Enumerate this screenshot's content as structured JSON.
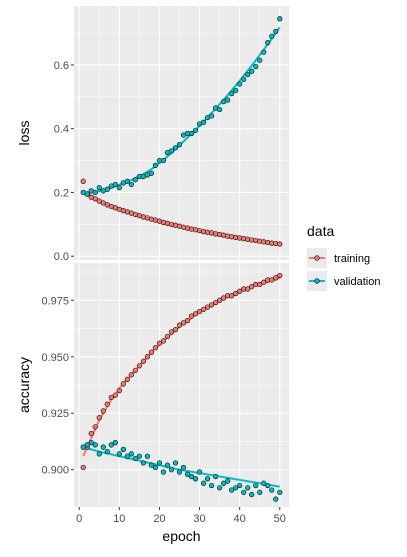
{
  "chart_data": {
    "type": "line",
    "facets": [
      {
        "name": "loss",
        "ylabel": "loss",
        "ylim": [
          -0.012,
          0.785
        ],
        "yticks": [
          0.0,
          0.2,
          0.4,
          0.6
        ],
        "tick_labels": [
          "0.0",
          "0.2",
          "0.4",
          "0.6"
        ],
        "series": [
          {
            "name": "training",
            "x": [
              1,
              2,
              3,
              4,
              5,
              6,
              7,
              8,
              9,
              10,
              11,
              12,
              13,
              14,
              15,
              16,
              17,
              18,
              19,
              20,
              21,
              22,
              23,
              24,
              25,
              26,
              27,
              28,
              29,
              30,
              31,
              32,
              33,
              34,
              35,
              36,
              37,
              38,
              39,
              40,
              41,
              42,
              43,
              44,
              45,
              46,
              47,
              48,
              49,
              50
            ],
            "y": [
              0.235,
              0.195,
              0.185,
              0.18,
              0.173,
              0.167,
              0.161,
              0.156,
              0.152,
              0.147,
              0.143,
              0.139,
              0.135,
              0.131,
              0.127,
              0.123,
              0.12,
              0.116,
              0.113,
              0.11,
              0.106,
              0.103,
              0.1,
              0.097,
              0.094,
              0.091,
              0.088,
              0.085,
              0.083,
              0.08,
              0.077,
              0.075,
              0.073,
              0.07,
              0.068,
              0.066,
              0.063,
              0.061,
              0.059,
              0.057,
              0.055,
              0.053,
              0.051,
              0.049,
              0.047,
              0.045,
              0.043,
              0.041,
              0.04,
              0.038
            ]
          },
          {
            "name": "validation",
            "x": [
              1,
              2,
              3,
              4,
              5,
              6,
              7,
              8,
              9,
              10,
              11,
              12,
              13,
              14,
              15,
              16,
              17,
              18,
              19,
              20,
              21,
              22,
              23,
              24,
              25,
              26,
              27,
              28,
              29,
              30,
              31,
              32,
              33,
              34,
              35,
              36,
              37,
              38,
              39,
              40,
              41,
              42,
              43,
              44,
              45,
              46,
              47,
              48,
              49,
              50
            ],
            "y": [
              0.2,
              0.195,
              0.205,
              0.2,
              0.215,
              0.205,
              0.21,
              0.22,
              0.225,
              0.215,
              0.23,
              0.235,
              0.225,
              0.24,
              0.25,
              0.25,
              0.255,
              0.26,
              0.285,
              0.3,
              0.3,
              0.325,
              0.33,
              0.34,
              0.35,
              0.38,
              0.385,
              0.385,
              0.395,
              0.415,
              0.42,
              0.435,
              0.44,
              0.465,
              0.46,
              0.485,
              0.49,
              0.51,
              0.52,
              0.54,
              0.555,
              0.57,
              0.58,
              0.595,
              0.615,
              0.64,
              0.67,
              0.69,
              0.705,
              0.745
            ]
          }
        ],
        "smooth": {
          "training": [
            0.205,
            0.196,
            0.188,
            0.181,
            0.174,
            0.168,
            0.162,
            0.157,
            0.152,
            0.147,
            0.143,
            0.139,
            0.135,
            0.131,
            0.127,
            0.123,
            0.12,
            0.116,
            0.113,
            0.11,
            0.106,
            0.103,
            0.1,
            0.097,
            0.094,
            0.091,
            0.088,
            0.086,
            0.083,
            0.08,
            0.078,
            0.075,
            0.073,
            0.07,
            0.068,
            0.066,
            0.063,
            0.061,
            0.059,
            0.057,
            0.055,
            0.053,
            0.051,
            0.049,
            0.047,
            0.045,
            0.043,
            0.041,
            0.039,
            0.037
          ],
          "validation": [
            0.198,
            0.199,
            0.2,
            0.202,
            0.204,
            0.207,
            0.211,
            0.215,
            0.219,
            0.224,
            0.229,
            0.234,
            0.239,
            0.245,
            0.251,
            0.258,
            0.265,
            0.273,
            0.282,
            0.292,
            0.302,
            0.313,
            0.324,
            0.336,
            0.348,
            0.36,
            0.372,
            0.384,
            0.396,
            0.409,
            0.422,
            0.435,
            0.449,
            0.463,
            0.477,
            0.491,
            0.505,
            0.52,
            0.535,
            0.55,
            0.566,
            0.582,
            0.598,
            0.614,
            0.631,
            0.648,
            0.665,
            0.682,
            0.7,
            0.718
          ]
        }
      },
      {
        "name": "accuracy",
        "ylabel": "accuracy",
        "ylim": [
          0.8835,
          0.9915
        ],
        "yticks": [
          0.9,
          0.925,
          0.95,
          0.975
        ],
        "tick_labels": [
          "0.900",
          "0.925",
          "0.950",
          "0.975"
        ],
        "series": [
          {
            "name": "training",
            "x": [
              1,
              2,
              3,
              4,
              5,
              6,
              7,
              8,
              9,
              10,
              11,
              12,
              13,
              14,
              15,
              16,
              17,
              18,
              19,
              20,
              21,
              22,
              23,
              24,
              25,
              26,
              27,
              28,
              29,
              30,
              31,
              32,
              33,
              34,
              35,
              36,
              37,
              38,
              39,
              40,
              41,
              42,
              43,
              44,
              45,
              46,
              47,
              48,
              49,
              50
            ],
            "y": [
              0.901,
              0.91,
              0.916,
              0.919,
              0.923,
              0.926,
              0.929,
              0.932,
              0.933,
              0.935,
              0.938,
              0.94,
              0.942,
              0.944,
              0.946,
              0.948,
              0.95,
              0.952,
              0.954,
              0.956,
              0.957,
              0.959,
              0.961,
              0.962,
              0.964,
              0.965,
              0.966,
              0.968,
              0.969,
              0.97,
              0.971,
              0.972,
              0.973,
              0.974,
              0.975,
              0.976,
              0.977,
              0.977,
              0.978,
              0.979,
              0.98,
              0.98,
              0.981,
              0.982,
              0.982,
              0.983,
              0.984,
              0.984,
              0.985,
              0.986
            ]
          },
          {
            "name": "validation",
            "x": [
              1,
              2,
              3,
              4,
              5,
              6,
              7,
              8,
              9,
              10,
              11,
              12,
              13,
              14,
              15,
              16,
              17,
              18,
              19,
              20,
              21,
              22,
              23,
              24,
              25,
              26,
              27,
              28,
              29,
              30,
              31,
              32,
              33,
              34,
              35,
              36,
              37,
              38,
              39,
              40,
              41,
              42,
              43,
              44,
              45,
              46,
              47,
              48,
              49,
              50
            ],
            "y": [
              0.91,
              0.911,
              0.912,
              0.911,
              0.907,
              0.91,
              0.908,
              0.911,
              0.912,
              0.907,
              0.909,
              0.906,
              0.907,
              0.905,
              0.906,
              0.903,
              0.906,
              0.902,
              0.901,
              0.903,
              0.899,
              0.902,
              0.9,
              0.903,
              0.899,
              0.901,
              0.898,
              0.897,
              0.896,
              0.899,
              0.894,
              0.896,
              0.893,
              0.897,
              0.892,
              0.894,
              0.895,
              0.891,
              0.892,
              0.893,
              0.89,
              0.892,
              0.889,
              0.893,
              0.89,
              0.894,
              0.893,
              0.891,
              0.887,
              0.89
            ]
          }
        ],
        "smooth": {
          "training": [
            0.906,
            0.91,
            0.914,
            0.918,
            0.922,
            0.925,
            0.928,
            0.931,
            0.933,
            0.936,
            0.938,
            0.94,
            0.942,
            0.944,
            0.946,
            0.948,
            0.95,
            0.952,
            0.954,
            0.955,
            0.957,
            0.959,
            0.96,
            0.962,
            0.963,
            0.965,
            0.966,
            0.967,
            0.969,
            0.97,
            0.971,
            0.972,
            0.973,
            0.974,
            0.975,
            0.976,
            0.977,
            0.977,
            0.978,
            0.979,
            0.98,
            0.98,
            0.981,
            0.982,
            0.982,
            0.983,
            0.983,
            0.984,
            0.984,
            0.985
          ],
          "validation": [
            0.91,
            0.9095,
            0.909,
            0.9085,
            0.908,
            0.9076,
            0.9072,
            0.9068,
            0.9064,
            0.906,
            0.9056,
            0.9052,
            0.9048,
            0.9044,
            0.904,
            0.9036,
            0.9032,
            0.9028,
            0.9024,
            0.902,
            0.9016,
            0.9012,
            0.9008,
            0.9004,
            0.9,
            0.8997,
            0.8994,
            0.8991,
            0.8988,
            0.8985,
            0.8982,
            0.8979,
            0.8976,
            0.8973,
            0.897,
            0.8967,
            0.8964,
            0.8961,
            0.8958,
            0.8955,
            0.8952,
            0.8949,
            0.8946,
            0.8943,
            0.894,
            0.8937,
            0.8934,
            0.8931,
            0.8928,
            0.8925
          ]
        }
      }
    ],
    "xlabel": "epoch",
    "xlim": [
      -1.3,
      52.3
    ],
    "xticks": [
      0,
      10,
      20,
      30,
      40,
      50
    ],
    "x_tick_labels": [
      "0",
      "10",
      "20",
      "30",
      "40",
      "50"
    ],
    "legend": {
      "title": "data",
      "placement": "right",
      "entries": [
        "training",
        "validation"
      ]
    },
    "colors": {
      "training": "#F8766D",
      "validation": "#00BFC4",
      "panel_bg": "#EBEBEB",
      "grid_major": "#FFFFFF",
      "point_stroke": "#000000"
    },
    "grid": true
  }
}
